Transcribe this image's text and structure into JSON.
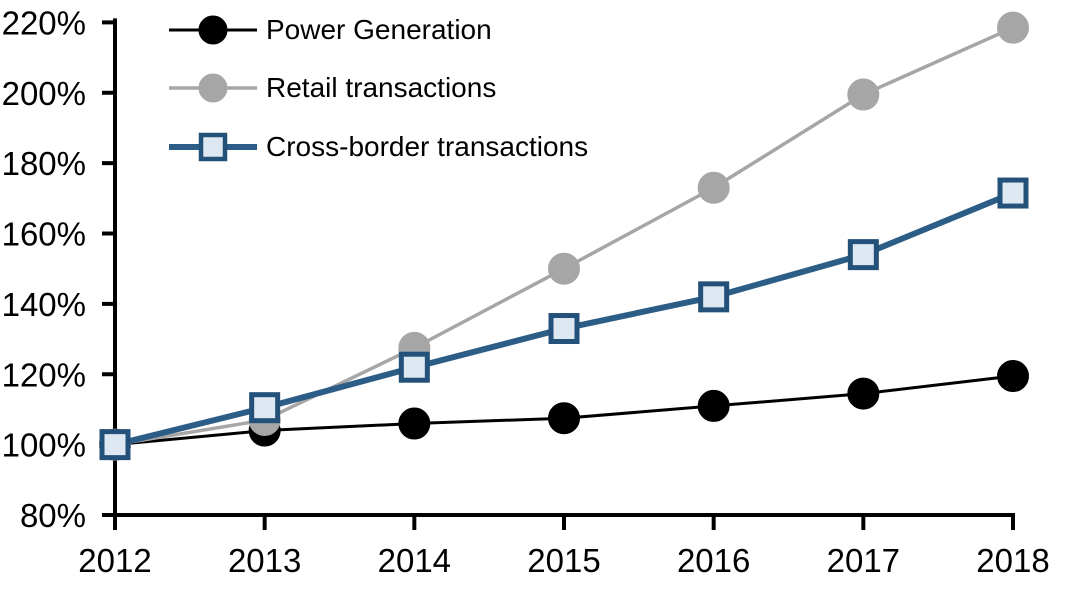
{
  "chart_data": {
    "type": "line",
    "title": "",
    "x_categories": [
      "2012",
      "2013",
      "2014",
      "2015",
      "2016",
      "2017",
      "2018"
    ],
    "series": [
      {
        "name": "Power Generation",
        "marker": "circle",
        "line_color": "#000000",
        "marker_fill": "#000000",
        "marker_stroke": "#000000",
        "line_width": 3,
        "values": [
          100,
          104,
          106,
          107.5,
          111,
          114.5,
          119.5
        ]
      },
      {
        "name": "Retail transactions",
        "marker": "circle",
        "line_color": "#A6A6A6",
        "marker_fill": "#A6A6A6",
        "marker_stroke": "#A6A6A6",
        "line_width": 3.5,
        "values": [
          100,
          107,
          127.5,
          150,
          173,
          199.5,
          218.5
        ]
      },
      {
        "name": "Cross-border transactions",
        "marker": "square",
        "line_color": "#2B5D87",
        "marker_fill": "#DDE8F3",
        "marker_stroke": "#235179",
        "line_width": 6,
        "values": [
          100,
          110.5,
          122,
          133,
          142,
          154,
          171.5
        ]
      }
    ],
    "y_axis": {
      "min": 80,
      "max": 220,
      "step": 20,
      "tick_labels": [
        "80%",
        "100%",
        "120%",
        "140%",
        "160%",
        "180%",
        "200%",
        "220%"
      ],
      "format": "percent"
    },
    "x_axis": {
      "tick_labels": [
        "2012",
        "2013",
        "2014",
        "2015",
        "2016",
        "2017",
        "2018"
      ]
    },
    "legend": {
      "position": "top-left",
      "entries": [
        "Power Generation",
        "Retail transactions",
        "Cross-border transactions"
      ]
    },
    "grid": false,
    "axis_color": "#000000",
    "background": "#FFFFFF"
  }
}
